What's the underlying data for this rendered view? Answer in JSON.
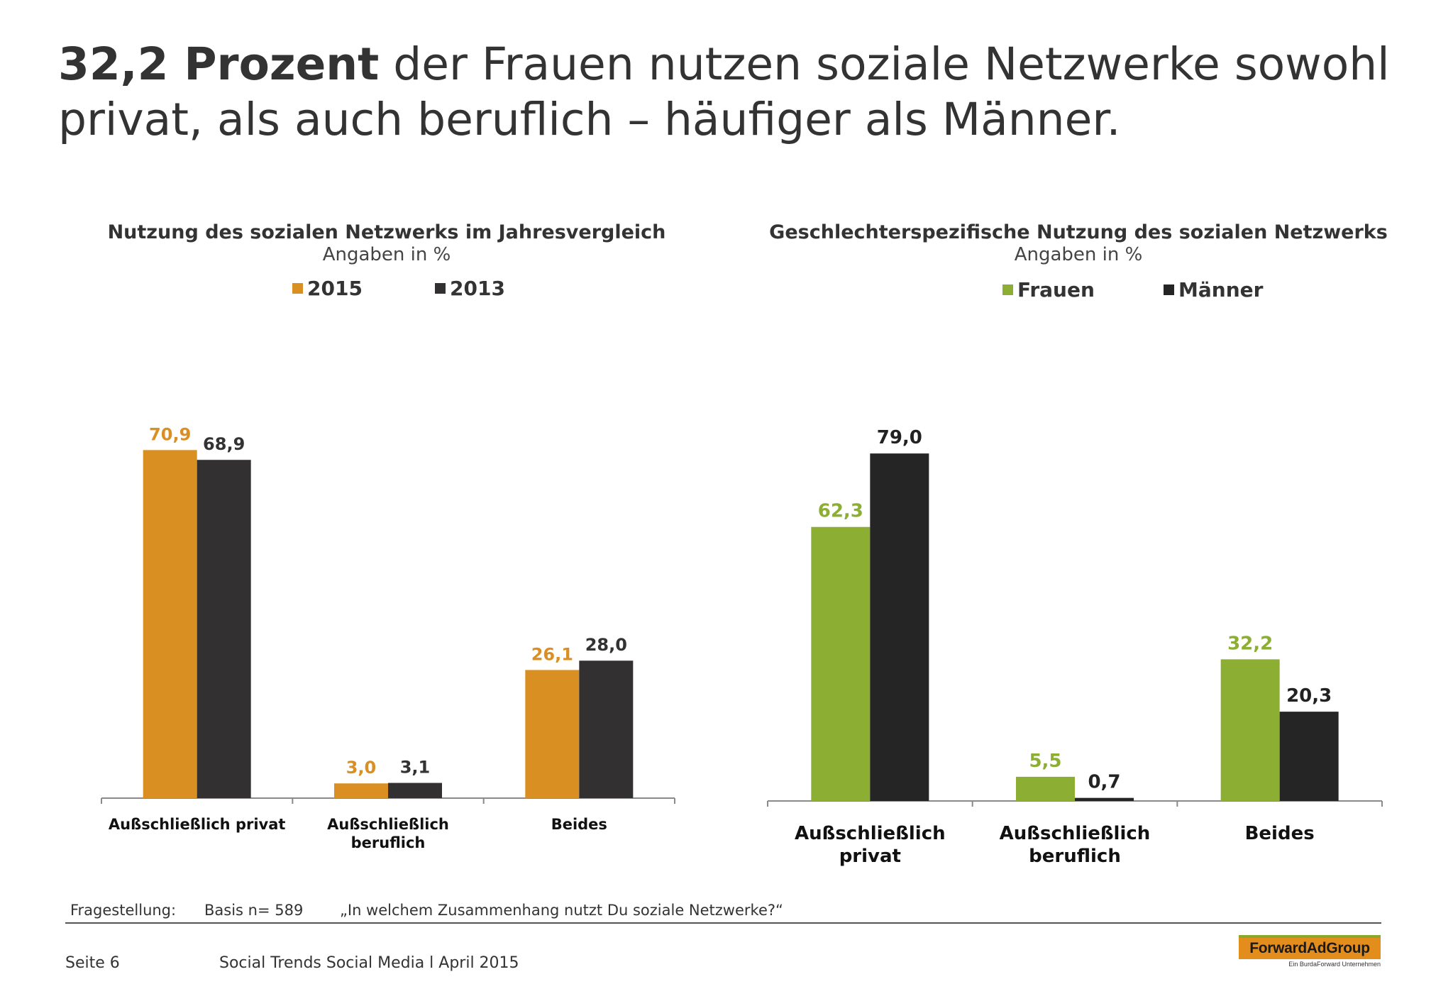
{
  "headline": {
    "bold": "32,2 Prozent",
    "rest_line1": " der Frauen nutzen soziale Netzwerke sowohl",
    "line2": "privat, als auch beruflich – häufiger als Männer."
  },
  "chart_data": [
    {
      "type": "bar",
      "title": "Nutzung des sozialen Netzwerks im Jahresvergleich",
      "subtitle": "Angaben in %",
      "categories": [
        "Außschließlich privat",
        "Außschließlich beruflich",
        "Beides"
      ],
      "series": [
        {
          "name": "2015",
          "values": [
            70.9,
            3.0,
            26.1
          ],
          "labels": [
            "70,9",
            "3,0",
            "26,1"
          ],
          "color": "#d98f22",
          "label_color": "#d98f22"
        },
        {
          "name": "2013",
          "values": [
            68.9,
            3.1,
            28.0
          ],
          "labels": [
            "68,9",
            "3,1",
            "28,0"
          ],
          "color": "#323031",
          "label_color": "#333333"
        }
      ],
      "ylim": [
        0,
        100
      ],
      "grid": false,
      "legend": "top"
    },
    {
      "type": "bar",
      "title": "Geschlechterspezifische Nutzung des sozialen Netzwerks",
      "subtitle": "Angaben in %",
      "categories": [
        "Außschließlich privat",
        "Außschließlich beruflich",
        "Beides"
      ],
      "series": [
        {
          "name": "Frauen",
          "values": [
            62.3,
            5.5,
            32.2
          ],
          "labels": [
            "62,3",
            "5,5",
            "32,2"
          ],
          "color": "#8cae32",
          "label_color": "#8cae32"
        },
        {
          "name": "Männer",
          "values": [
            79.0,
            0.7,
            20.3
          ],
          "labels": [
            "79,0",
            "0,7",
            "20,3"
          ],
          "color": "#262525",
          "label_color": "#222222"
        }
      ],
      "ylim": [
        0,
        100
      ],
      "grid": false,
      "legend": "top"
    }
  ],
  "footer": {
    "question_label": "Fragestellung:",
    "basis": "Basis n= 589",
    "question": "„In welchem Zusammenhang nutzt Du soziale  Netzwerke?“",
    "page": "Seite 6",
    "report": "Social Trends Social Media l April 2015"
  },
  "logo": {
    "name": "ForwardAdGroup",
    "tagline": "Ein BurdaForward Unternehmen"
  }
}
